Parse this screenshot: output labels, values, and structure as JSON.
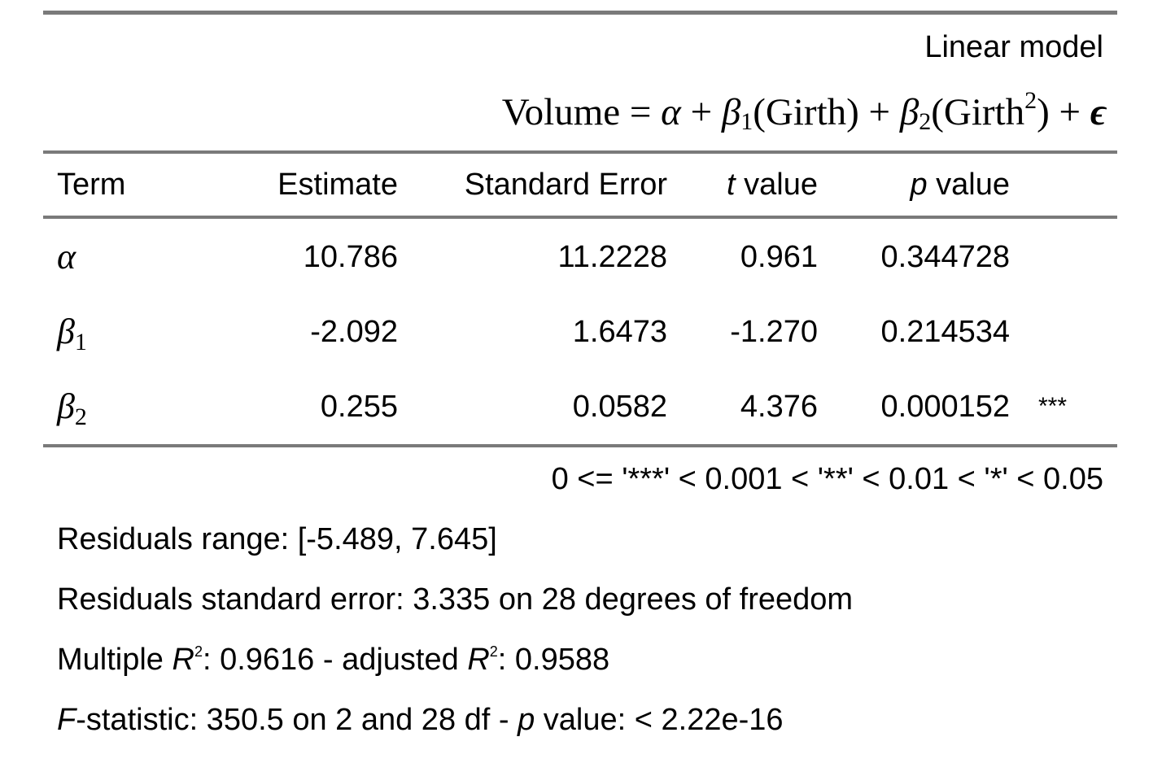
{
  "model": {
    "title": "Linear model",
    "formula": {
      "lhs": "Volume",
      "eq": " = ",
      "alpha": "α",
      "plus": " + ",
      "beta": "β",
      "beta1_sub": "1",
      "beta1_term": "(Girth)",
      "beta2_sub": "2",
      "beta2_term_open": "(Girth",
      "beta2_term_sup": "2",
      "beta2_term_close": ")",
      "epsilon": "ϵ"
    }
  },
  "table": {
    "columns": {
      "term": "Term",
      "estimate": "Estimate",
      "std_error": "Standard Error",
      "t_italic": "t",
      "t_rest": " value",
      "p_italic": "p",
      "p_rest": " value"
    },
    "rows": [
      {
        "term": "α",
        "sub": "",
        "estimate": "10.786",
        "std_error": "11.2228",
        "t_value": "0.961",
        "p_value": "0.344728",
        "signif": ""
      },
      {
        "term": "β",
        "sub": "1",
        "estimate": "-2.092",
        "std_error": "1.6473",
        "t_value": "-1.270",
        "p_value": "0.214534",
        "signif": ""
      },
      {
        "term": "β",
        "sub": "2",
        "estimate": "0.255",
        "std_error": "0.0582",
        "t_value": "4.376",
        "p_value": "0.000152",
        "signif": "***"
      }
    ]
  },
  "legend": "0 <= '***' < 0.001 < '**' < 0.01 < '*' < 0.05",
  "notes": {
    "residuals_range": "Residuals range: [-5.489, 7.645]",
    "residual_se": "Residuals standard error: 3.335 on 28 degrees of freedom",
    "r2_prefix": "Multiple ",
    "r2_r": "R",
    "r2_sup": "2",
    "r2_mid": ": 0.9616 - adjusted ",
    "r2_r2": "R",
    "r2_sup2": "2",
    "r2_end": ": 0.9588",
    "f_italic": "F",
    "f_mid": "-statistic: 350.5 on 2 and 28 df - ",
    "f_p": "p",
    "f_end": " value: < 2.22e-16"
  }
}
